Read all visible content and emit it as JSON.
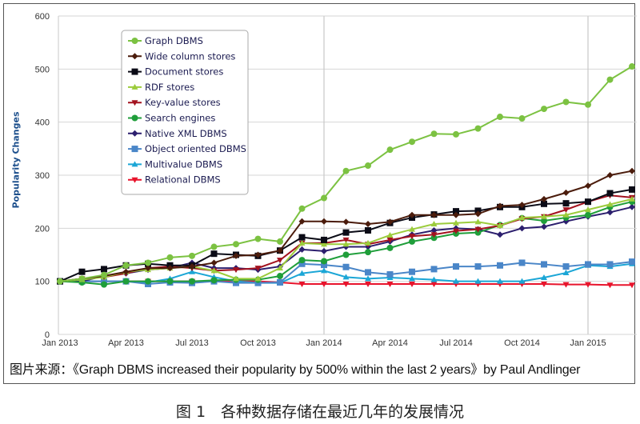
{
  "chart_data": {
    "type": "line",
    "title": "",
    "ylabel": "Popularity Changes",
    "xlabel": "",
    "ylim": [
      0,
      600
    ],
    "yticks": [
      0,
      100,
      200,
      300,
      400,
      500,
      600
    ],
    "xtick_labels": [
      "Jan 2013",
      "Apr 2013",
      "Jul 2013",
      "Oct 2013",
      "Jan 2014",
      "Apr 2014",
      "Jul 2014",
      "Oct 2014",
      "Jan 2015"
    ],
    "x_months": [
      "2013-01",
      "2013-02",
      "2013-03",
      "2013-04",
      "2013-05",
      "2013-06",
      "2013-07",
      "2013-08",
      "2013-09",
      "2013-10",
      "2013-11",
      "2013-12",
      "2014-01",
      "2014-02",
      "2014-03",
      "2014-04",
      "2014-05",
      "2014-06",
      "2014-07",
      "2014-08",
      "2014-09",
      "2014-10",
      "2014-11",
      "2014-12",
      "2015-01",
      "2015-02",
      "2015-03"
    ],
    "grid": true,
    "legend_position": "top-left",
    "series": [
      {
        "name": "Graph DBMS",
        "color": "#7cc242",
        "marker": "circle",
        "values": [
          100,
          105,
          112,
          130,
          135,
          145,
          148,
          165,
          170,
          180,
          175,
          237,
          257,
          308,
          318,
          348,
          363,
          378,
          377,
          388,
          410,
          407,
          425,
          438,
          433,
          480,
          505
        ]
      },
      {
        "name": "Wide column stores",
        "color": "#4b1c0c",
        "marker": "diamond",
        "values": [
          100,
          105,
          110,
          118,
          125,
          125,
          128,
          135,
          148,
          150,
          158,
          213,
          213,
          212,
          208,
          212,
          225,
          225,
          225,
          227,
          242,
          244,
          255,
          267,
          280,
          300,
          308
        ]
      },
      {
        "name": "Document stores",
        "color": "#0b0b16",
        "marker": "square",
        "values": [
          100,
          118,
          123,
          130,
          133,
          130,
          130,
          152,
          150,
          148,
          158,
          183,
          178,
          192,
          196,
          210,
          220,
          226,
          232,
          233,
          240,
          240,
          246,
          247,
          250,
          266,
          273
        ]
      },
      {
        "name": "RDF stores",
        "color": "#9ccc3c",
        "marker": "triangle-up",
        "values": [
          100,
          103,
          108,
          118,
          122,
          125,
          128,
          120,
          105,
          105,
          125,
          172,
          170,
          170,
          172,
          187,
          198,
          208,
          210,
          212,
          205,
          220,
          222,
          225,
          235,
          245,
          255
        ]
      },
      {
        "name": "Key-value stores",
        "color": "#a3121f",
        "marker": "triangle-down",
        "values": [
          100,
          105,
          108,
          115,
          125,
          128,
          125,
          120,
          122,
          125,
          140,
          172,
          172,
          178,
          170,
          178,
          185,
          188,
          195,
          198,
          205,
          218,
          222,
          235,
          250,
          262,
          258
        ]
      },
      {
        "name": "Search engines",
        "color": "#1f9e3a",
        "marker": "circle",
        "values": [
          100,
          98,
          94,
          100,
          100,
          100,
          100,
          102,
          103,
          103,
          110,
          140,
          138,
          150,
          155,
          163,
          175,
          182,
          190,
          192,
          206,
          219,
          214,
          220,
          225,
          240,
          250
        ]
      },
      {
        "name": "Native XML DBMS",
        "color": "#2c1f6e",
        "marker": "diamond",
        "values": [
          100,
          100,
          110,
          115,
          122,
          125,
          135,
          125,
          125,
          122,
          128,
          160,
          157,
          165,
          165,
          175,
          188,
          196,
          200,
          198,
          188,
          200,
          203,
          213,
          222,
          230,
          240
        ]
      },
      {
        "name": "Object oriented DBMS",
        "color": "#4a86c8",
        "marker": "square",
        "values": [
          100,
          100,
          100,
          100,
          95,
          98,
          97,
          100,
          97,
          97,
          98,
          133,
          131,
          127,
          117,
          113,
          118,
          123,
          128,
          128,
          130,
          135,
          132,
          128,
          132,
          132,
          137
        ]
      },
      {
        "name": "Multivalue DBMS",
        "color": "#1ba6d6",
        "marker": "triangle-up",
        "values": [
          100,
          100,
          100,
          100,
          98,
          105,
          118,
          108,
          100,
          97,
          97,
          115,
          120,
          108,
          105,
          107,
          105,
          103,
          100,
          100,
          100,
          100,
          107,
          116,
          130,
          128,
          133
        ]
      },
      {
        "name": "Relational DBMS",
        "color": "#e8142c",
        "marker": "triangle-down",
        "values": [
          100,
          100,
          100,
          100,
          100,
          100,
          100,
          100,
          100,
          100,
          98,
          95,
          95,
          95,
          95,
          95,
          95,
          95,
          95,
          95,
          95,
          95,
          95,
          94,
          94,
          93,
          93
        ]
      }
    ]
  },
  "source_caption": "图片来源：《Graph DBMS increased their popularity by 500% within the last 2 years》by Paul Andlinger",
  "figure_title": "图 1　各种数据存储在最近几年的发展情况"
}
